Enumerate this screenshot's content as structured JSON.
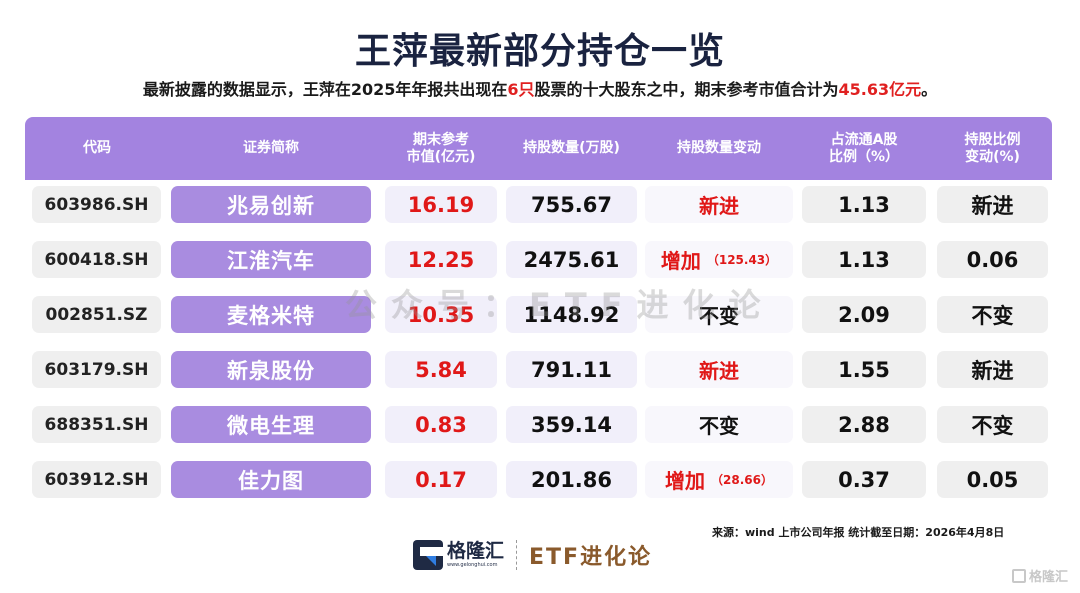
{
  "title": "王萍最新部分持仓一览",
  "subtitle": {
    "part1": "最新披露的数据显示，王萍在2025年年报共出现在",
    "highlight1": "6只",
    "part2": "股票的十大股东之中，期末参考市值合计为",
    "highlight2": "45.63亿元",
    "part3": "。"
  },
  "table": {
    "headers": {
      "code": "代码",
      "name": "证券简称",
      "value_l1": "期末参考",
      "value_l2": "市值(亿元)",
      "shares": "持股数量(万股)",
      "change": "持股数量变动",
      "ratio_l1": "占流通A股",
      "ratio_l2": "比例（%）",
      "pct_l1": "持股比例",
      "pct_l2": "变动(%)"
    },
    "rows": [
      {
        "code": "603986.SH",
        "name": "兆易创新",
        "value": "16.19",
        "shares": "755.67",
        "change": "新进",
        "change_sub": "",
        "change_color": "red",
        "ratio": "1.13",
        "pct_change": "新进"
      },
      {
        "code": "600418.SH",
        "name": "江淮汽车",
        "value": "12.25",
        "shares": "2475.61",
        "change": "增加",
        "change_sub": "（125.43）",
        "change_color": "red",
        "ratio": "1.13",
        "pct_change": "0.06"
      },
      {
        "code": "002851.SZ",
        "name": "麦格米特",
        "value": "10.35",
        "shares": "1148.92",
        "change": "不变",
        "change_sub": "",
        "change_color": "black",
        "ratio": "2.09",
        "pct_change": "不变"
      },
      {
        "code": "603179.SH",
        "name": "新泉股份",
        "value": "5.84",
        "shares": "791.11",
        "change": "新进",
        "change_sub": "",
        "change_color": "red",
        "ratio": "1.55",
        "pct_change": "新进"
      },
      {
        "code": "688351.SH",
        "name": "微电生理",
        "value": "0.83",
        "shares": "359.14",
        "change": "不变",
        "change_sub": "",
        "change_color": "black",
        "ratio": "2.88",
        "pct_change": "不变"
      },
      {
        "code": "603912.SH",
        "name": "佳力图",
        "value": "0.17",
        "shares": "201.86",
        "change": "增加",
        "change_sub": "（28.66）",
        "change_color": "red",
        "ratio": "0.37",
        "pct_change": "0.05"
      }
    ]
  },
  "watermark": "公众号：ETF进化论",
  "source": "来源：wind 上市公司年报 统计截至日期：2026年4月8日",
  "footer": {
    "logo_cn": "格隆汇",
    "logo_url": "www.gelonghui.com",
    "etf_brand": "ETF进化论",
    "corner_mark": "格隆汇"
  },
  "colors": {
    "header_purple": "#a383e0",
    "name_purple": "#a98ce0",
    "highlight_red": "#e01818",
    "title_navy": "#1a2340",
    "brand_brown": "#8a5a2c"
  }
}
